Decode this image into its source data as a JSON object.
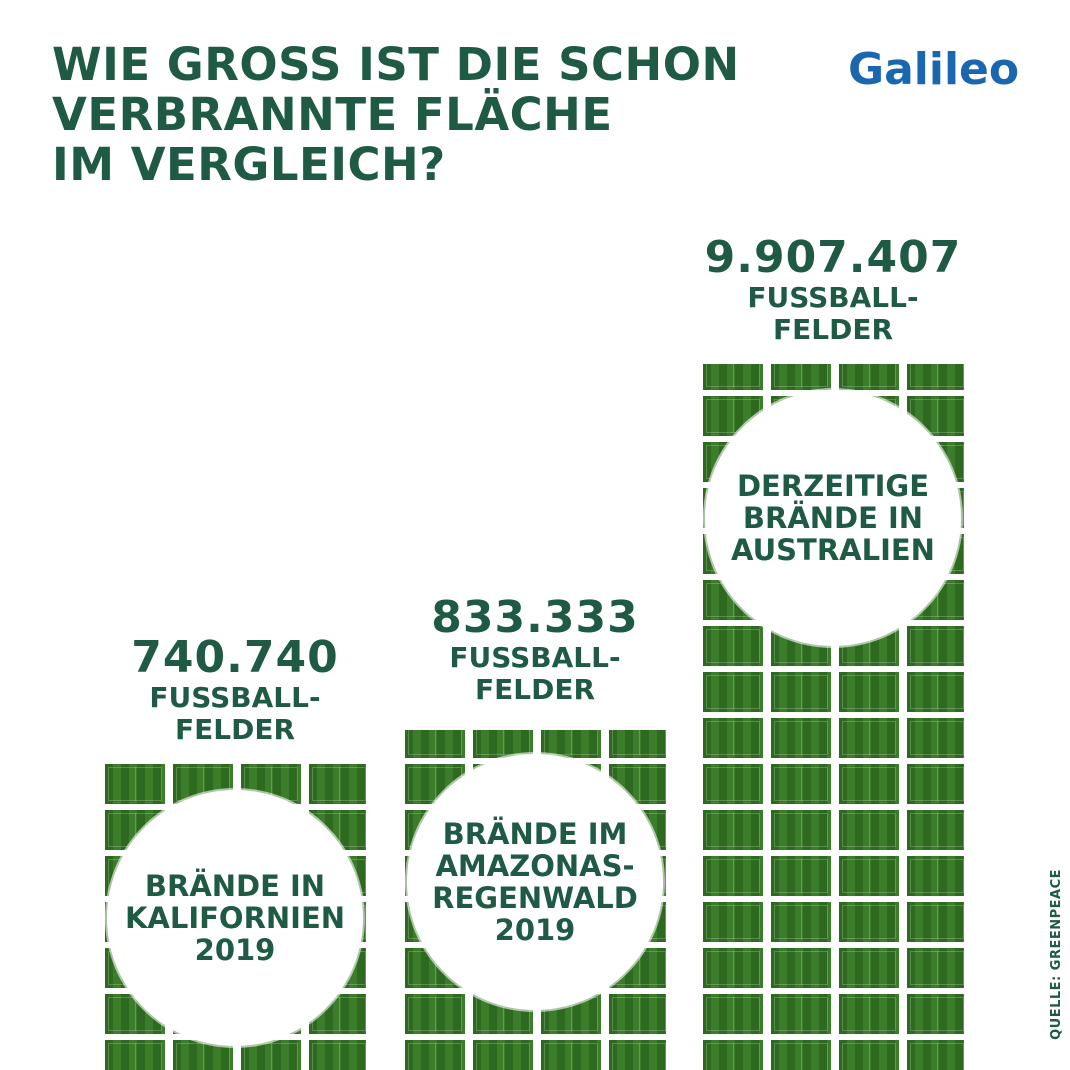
{
  "headline": {
    "lines": [
      "WIE GROSS IST DIE SCHON",
      "VERBRANNTE FLÄCHE",
      "IM VERGLEICH?"
    ]
  },
  "logo": {
    "text": "Galileo"
  },
  "source": "QUELLE: GREENPEACE",
  "colors": {
    "text": "#1e5a44",
    "logo": "#1a67b0",
    "field": "#2d6a1f"
  },
  "chart_data": {
    "type": "bar",
    "title": "WIE GROSS IST DIE SCHON VERBRANNTE FLÄCHE IM VERGLEICH?",
    "unit": "FUSSBALL-FELDER",
    "bars": [
      {
        "label": "BRÄNDE IN KALIFORNIEN 2019",
        "value": 740740,
        "value_text": "740.740",
        "unit_text": "FUSSBALL-\nFELDER"
      },
      {
        "label": "BRÄNDE IM AMAZONAS-REGENWALD 2019",
        "value": 833333,
        "value_text": "833.333",
        "unit_text": "FUSSBALL-\nFELDER"
      },
      {
        "label": "DERZEITIGE BRÄNDE IN AUSTRALIEN",
        "value": 9907407,
        "value_text": "9.907.407",
        "unit_text": "FUSSBALL-\nFELDER"
      }
    ]
  }
}
